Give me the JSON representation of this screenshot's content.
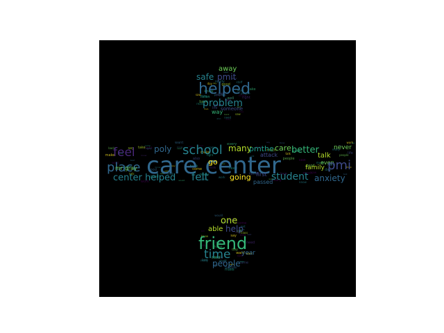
{
  "image": {
    "type": "word-cloud",
    "background": "#000000",
    "shape": "equals sign / division symbol (dot, bar, dot)",
    "palette": [
      "#440154",
      "#482878",
      "#3e4a89",
      "#31688e",
      "#26828e",
      "#1f9e89",
      "#35b779",
      "#6ece58",
      "#b5de2b",
      "#fde725"
    ]
  },
  "words": {
    "care_center": "care center",
    "helped": "helped",
    "friend": "friend",
    "school": "school",
    "feel": "feel",
    "place": "place",
    "pmi": "pmi",
    "time": "time",
    "problem": "problem",
    "center_helped": "center helped",
    "felt": "felt",
    "student": "student",
    "anxiety": "anxiety",
    "better": "better",
    "going": "going",
    "safe": "safe",
    "pmit": "pmit",
    "poly": "poly",
    "many": "many",
    "pm_the": "pmthe",
    "care": "care",
    "talk": "talk",
    "family": "family",
    "people": "people",
    "one": "one",
    "help": "help",
    "able": "able",
    "away": "away",
    "go": "go",
    "mr_gray": "mr gray",
    "year": "year",
    "way": "way",
    "someone": "someone",
    "never": "never",
    "even": "even",
    "attack": "attack",
    "passed": "passed",
    "first": "first",
    "listen": "listen",
    "school_small": "school"
  }
}
